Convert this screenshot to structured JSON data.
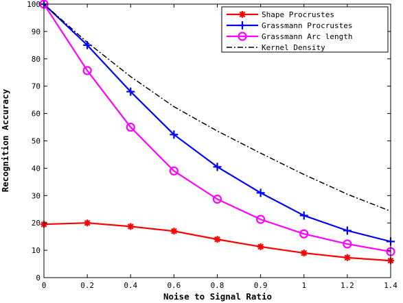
{
  "chart_data": {
    "type": "line",
    "xlabel": "Noise to Signal Ratio",
    "ylabel": "Recognition Accuracy",
    "categories": [
      "0",
      "0.2",
      "0.4",
      "0.6",
      "0.8",
      "0.9",
      "1",
      "1.2",
      "1.4"
    ],
    "yticks": [
      "0",
      "10",
      "20",
      "30",
      "40",
      "50",
      "60",
      "70",
      "80",
      "90",
      "100"
    ],
    "ylim": [
      0,
      100
    ],
    "grid": false,
    "legend_position": "top-right",
    "series": [
      {
        "name": "Shape Procrustes",
        "color": "#ff0000",
        "marker": "asterisk",
        "line_style": "solid",
        "values": [
          19.5,
          20,
          18.7,
          17,
          14,
          11.3,
          9,
          7.3,
          6.2
        ]
      },
      {
        "name": "Grassmann Procrustes",
        "color": "#0000ff",
        "marker": "plus",
        "line_style": "solid",
        "values": [
          100,
          85,
          68,
          52.3,
          40.5,
          31,
          22.7,
          17.2,
          13.2
        ]
      },
      {
        "name": "Grassmann Arc length",
        "color": "#ff00ff",
        "marker": "circle",
        "line_style": "solid",
        "values": [
          100,
          75.7,
          55,
          39,
          28.7,
          21.3,
          16,
          12.3,
          9.5
        ]
      },
      {
        "name": "Kernel Density",
        "color": "#000000",
        "marker": "none",
        "line_style": "dash-dot",
        "values": [
          100,
          86,
          73.5,
          62.5,
          53.6,
          45.5,
          37.7,
          30.5,
          24.3
        ]
      }
    ]
  }
}
